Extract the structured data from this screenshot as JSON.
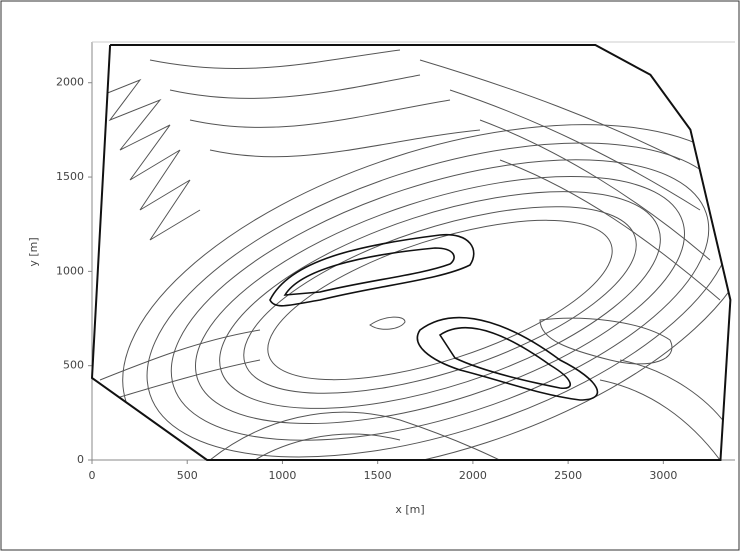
{
  "chart_data": {
    "type": "contour",
    "x_label": "x [m]",
    "y_label": "y [m]",
    "xlim": [
      0,
      3350
    ],
    "ylim": [
      0,
      2200
    ],
    "xticks": [
      0,
      500,
      1000,
      1500,
      2000,
      2500,
      3000
    ],
    "yticks": [
      0,
      500,
      1000,
      1500,
      2000
    ],
    "boundary": {
      "x": [
        95,
        2643,
        2932,
        3142,
        3352,
        3300,
        604,
        0,
        95
      ],
      "y": [
        2200,
        2200,
        2042,
        1751,
        849,
        0,
        0,
        435,
        2200
      ],
      "color": "#111111"
    }
  }
}
